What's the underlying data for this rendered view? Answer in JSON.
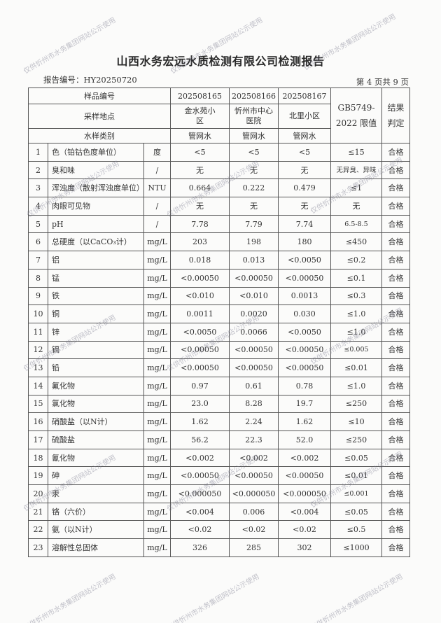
{
  "document": {
    "title": "山西水务宏远水质检测有限公司检测报告",
    "report_number": "报告编号：HY20250720",
    "page_info": "第 4 页共 9 页",
    "watermark": {
      "text": "仅供忻州市水务集团网站公示使用"
    }
  },
  "table": {
    "header": {
      "sample_id_label": "样品编号",
      "location_label": "采样地点",
      "type_label": "水样类别",
      "limit_label_1": "GB5749-",
      "limit_label_2": "2022 限值",
      "result_label_1": "结果",
      "result_label_2": "判定",
      "samples": [
        {
          "id": "202508165",
          "location": "金水苑小区",
          "type": "管网水"
        },
        {
          "id": "202508166",
          "location": "忻州市中心医院",
          "type": "管网水"
        },
        {
          "id": "202508167",
          "location": "北里小区",
          "type": "管网水"
        }
      ]
    },
    "rows": [
      {
        "no": "1",
        "item": "色（铂钴色度单位）",
        "unit": "度",
        "v1": "<5",
        "v2": "<5",
        "v3": "<5",
        "limit": "≤15",
        "result": "合格"
      },
      {
        "no": "2",
        "item": "臭和味",
        "unit": "/",
        "v1": "无",
        "v2": "无",
        "v3": "无",
        "limit": "无异臭、异味",
        "result": "合格"
      },
      {
        "no": "3",
        "item": "浑浊度（散射浑浊度单位）",
        "unit": "NTU",
        "v1": "0.664",
        "v2": "0.222",
        "v3": "0.479",
        "limit": "≤1",
        "result": "合格"
      },
      {
        "no": "4",
        "item": "肉眼可见物",
        "unit": "/",
        "v1": "无",
        "v2": "无",
        "v3": "无",
        "limit": "无",
        "result": "合格"
      },
      {
        "no": "5",
        "item": "pH",
        "unit": "/",
        "v1": "7.78",
        "v2": "7.79",
        "v3": "7.74",
        "limit": "6.5-8.5",
        "result": "合格"
      },
      {
        "no": "6",
        "item": "总硬度（以CaCO₃计）",
        "unit": "mg/L",
        "v1": "203",
        "v2": "198",
        "v3": "180",
        "limit": "≤450",
        "result": "合格"
      },
      {
        "no": "7",
        "item": "铝",
        "unit": "mg/L",
        "v1": "0.018",
        "v2": "0.013",
        "v3": "<0.0050",
        "limit": "≤0.2",
        "result": "合格"
      },
      {
        "no": "8",
        "item": "锰",
        "unit": "mg/L",
        "v1": "<0.00050",
        "v2": "<0.00050",
        "v3": "<0.00050",
        "limit": "≤0.1",
        "result": "合格"
      },
      {
        "no": "9",
        "item": "铁",
        "unit": "mg/L",
        "v1": "<0.010",
        "v2": "<0.010",
        "v3": "0.0013",
        "limit": "≤0.3",
        "result": "合格"
      },
      {
        "no": "10",
        "item": "铜",
        "unit": "mg/L",
        "v1": "0.0011",
        "v2": "0.0020",
        "v3": "0.030",
        "limit": "≤1.0",
        "result": "合格"
      },
      {
        "no": "11",
        "item": "锌",
        "unit": "mg/L",
        "v1": "<0.0050",
        "v2": "0.0066",
        "v3": "<0.0050",
        "limit": "≤1.0",
        "result": "合格"
      },
      {
        "no": "12",
        "item": "镉",
        "unit": "mg/L",
        "v1": "<0.00050",
        "v2": "<0.00050",
        "v3": "<0.00050",
        "limit": "≤0.005",
        "result": "合格"
      },
      {
        "no": "13",
        "item": "铅",
        "unit": "mg/L",
        "v1": "<0.00050",
        "v2": "<0.00050",
        "v3": "<0.00050",
        "limit": "≤0.01",
        "result": "合格"
      },
      {
        "no": "14",
        "item": "氟化物",
        "unit": "mg/L",
        "v1": "0.97",
        "v2": "0.61",
        "v3": "0.78",
        "limit": "≤1.0",
        "result": "合格"
      },
      {
        "no": "15",
        "item": "氯化物",
        "unit": "mg/L",
        "v1": "23.0",
        "v2": "8.28",
        "v3": "19.7",
        "limit": "≤250",
        "result": "合格"
      },
      {
        "no": "16",
        "item": "硝酸盐（以N计）",
        "unit": "mg/L",
        "v1": "1.62",
        "v2": "2.24",
        "v3": "1.62",
        "limit": "≤10",
        "result": "合格"
      },
      {
        "no": "17",
        "item": "硫酸盐",
        "unit": "mg/L",
        "v1": "56.2",
        "v2": "22.3",
        "v3": "52.0",
        "limit": "≤250",
        "result": "合格"
      },
      {
        "no": "18",
        "item": "氰化物",
        "unit": "mg/L",
        "v1": "<0.002",
        "v2": "<0.002",
        "v3": "<0.002",
        "limit": "≤0.05",
        "result": "合格"
      },
      {
        "no": "19",
        "item": "砷",
        "unit": "mg/L",
        "v1": "<0.00050",
        "v2": "<0.00050",
        "v3": "<0.00050",
        "limit": "≤0.01",
        "result": "合格"
      },
      {
        "no": "20",
        "item": "汞",
        "unit": "mg/L",
        "v1": "<0.000050",
        "v2": "<0.000050",
        "v3": "<0.000050",
        "limit": "≤0.001",
        "result": "合格"
      },
      {
        "no": "21",
        "item": "铬（六价）",
        "unit": "mg/L",
        "v1": "<0.004",
        "v2": "0.006",
        "v3": "<0.004",
        "limit": "≤0.05",
        "result": "合格"
      },
      {
        "no": "22",
        "item": "氨（以N计）",
        "unit": "mg/L",
        "v1": "<0.02",
        "v2": "<0.02",
        "v3": "<0.02",
        "limit": "≤0.5",
        "result": "合格"
      },
      {
        "no": "23",
        "item": "溶解性总固体",
        "unit": "mg/L",
        "v1": "326",
        "v2": "285",
        "v3": "302",
        "limit": "≤1000",
        "result": "合格"
      }
    ]
  }
}
